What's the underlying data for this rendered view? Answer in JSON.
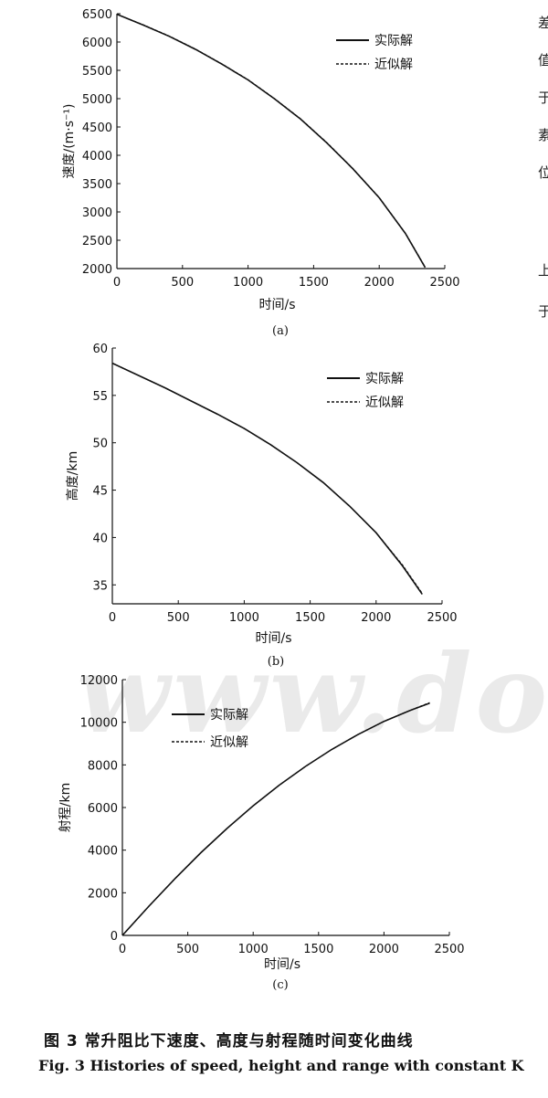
{
  "chart_data": [
    {
      "type": "line",
      "panel": "(a)",
      "xlabel": "时间/s",
      "ylabel": "速度/(m·s⁻¹)",
      "xlim": [
        0,
        2500
      ],
      "ylim": [
        2000,
        6500
      ],
      "xticks": [
        0,
        500,
        1000,
        1500,
        2000,
        2500
      ],
      "yticks": [
        2000,
        2500,
        3000,
        3500,
        4000,
        4500,
        5000,
        5500,
        6000,
        6500
      ],
      "legend_position": "top-right",
      "series": [
        {
          "name": "实际解",
          "style": "solid",
          "x": [
            0,
            200,
            400,
            600,
            800,
            1000,
            1200,
            1400,
            1600,
            1800,
            2000,
            2200,
            2350
          ],
          "y": [
            6490,
            6300,
            6100,
            5870,
            5610,
            5330,
            5000,
            4640,
            4220,
            3760,
            3250,
            2620,
            2020
          ]
        },
        {
          "name": "近似解",
          "style": "dashed",
          "x": [
            0,
            200,
            400,
            600,
            800,
            1000,
            1200,
            1400,
            1600,
            1800,
            2000,
            2200,
            2350
          ],
          "y": [
            6490,
            6305,
            6105,
            5875,
            5615,
            5335,
            5005,
            4645,
            4225,
            3765,
            3255,
            2625,
            2025
          ]
        }
      ]
    },
    {
      "type": "line",
      "panel": "(b)",
      "xlabel": "时间/s",
      "ylabel": "高度/km",
      "xlim": [
        0,
        2500
      ],
      "ylim": [
        33,
        60
      ],
      "xticks": [
        0,
        500,
        1000,
        1500,
        2000,
        2500
      ],
      "yticks": [
        35,
        40,
        45,
        50,
        55,
        60
      ],
      "legend_position": "top-right",
      "series": [
        {
          "name": "实际解",
          "style": "solid",
          "x": [
            0,
            200,
            400,
            600,
            800,
            1000,
            1200,
            1400,
            1600,
            1800,
            2000,
            2200,
            2350
          ],
          "y": [
            58.4,
            57.1,
            55.8,
            54.4,
            53.0,
            51.5,
            49.8,
            47.9,
            45.8,
            43.3,
            40.5,
            37.0,
            34.0
          ]
        },
        {
          "name": "近似解",
          "style": "dashed",
          "x": [
            0,
            200,
            400,
            600,
            800,
            1000,
            1200,
            1400,
            1600,
            1800,
            2000,
            2200,
            2350
          ],
          "y": [
            58.4,
            57.1,
            55.8,
            54.4,
            53.0,
            51.5,
            49.8,
            47.9,
            45.8,
            43.3,
            40.5,
            37.1,
            34.1
          ]
        }
      ]
    },
    {
      "type": "line",
      "panel": "(c)",
      "xlabel": "时间/s",
      "ylabel": "射程/km",
      "xlim": [
        0,
        2500
      ],
      "ylim": [
        0,
        12000
      ],
      "xticks": [
        0,
        500,
        1000,
        1500,
        2000,
        2500
      ],
      "yticks": [
        0,
        2000,
        4000,
        6000,
        8000,
        10000,
        12000
      ],
      "legend_position": "top-left",
      "series": [
        {
          "name": "实际解",
          "style": "solid",
          "x": [
            0,
            200,
            400,
            600,
            800,
            1000,
            1200,
            1400,
            1600,
            1800,
            2000,
            2200,
            2350
          ],
          "y": [
            0,
            1350,
            2650,
            3880,
            5020,
            6080,
            7050,
            7930,
            8720,
            9420,
            10040,
            10550,
            10900
          ]
        },
        {
          "name": "近似解",
          "style": "dashed",
          "x": [
            0,
            200,
            400,
            600,
            800,
            1000,
            1200,
            1400,
            1600,
            1800,
            2000,
            2200,
            2350
          ],
          "y": [
            0,
            1350,
            2650,
            3880,
            5020,
            6080,
            7050,
            7930,
            8720,
            9420,
            10040,
            10560,
            10920
          ]
        }
      ]
    }
  ],
  "caption": {
    "zh": "图 3    常升阻比下速度、高度与射程随时间变化曲线",
    "en": "Fig. 3    Histories of speed, height and range with constant K"
  },
  "watermark": "www.doc",
  "edge_fragments": [
    "差",
    "值",
    "于",
    "素",
    "位",
    "上",
    "于"
  ]
}
